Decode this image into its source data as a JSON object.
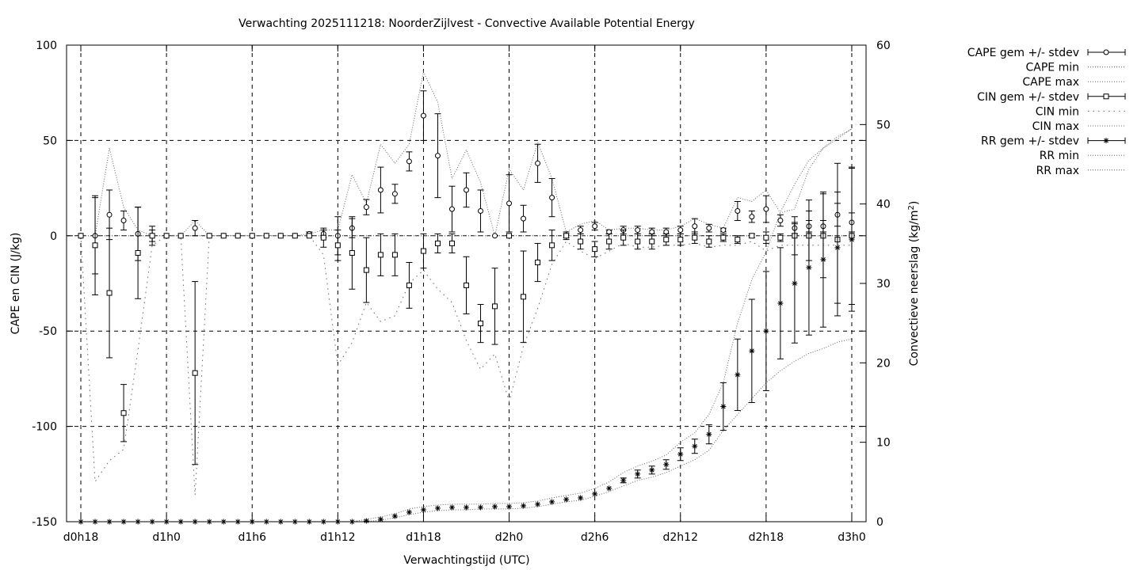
{
  "chart_data": {
    "type": "line",
    "title": "Verwachting 2025111218: NoorderZijlvest - Convective Available Potential Energy",
    "xlabel": "Verwachtingstijd (UTC)",
    "ylabel": "CAPE en CIN (J/kg)",
    "y2label_main": "Convectieve neerslag (kg/m",
    "y2label_sup": "2",
    "y2label_end": ")",
    "xlim": [
      -0.5,
      27.5
    ],
    "ylim": [
      -150,
      100
    ],
    "y2lim": [
      0,
      60
    ],
    "xticks": [
      {
        "x": 0,
        "label": "d0h18"
      },
      {
        "x": 3,
        "label": "d1h0"
      },
      {
        "x": 6,
        "label": "d1h6"
      },
      {
        "x": 9,
        "label": "d1h12"
      },
      {
        "x": 12,
        "label": "d1h18"
      },
      {
        "x": 15,
        "label": "d2h0"
      },
      {
        "x": 18,
        "label": "d2h6"
      },
      {
        "x": 21,
        "label": "d2h12"
      },
      {
        "x": 24,
        "label": "d2h18"
      },
      {
        "x": 27,
        "label": "d3h0"
      }
    ],
    "yticks": [
      -150,
      -100,
      -50,
      0,
      50,
      100
    ],
    "y2ticks": [
      0,
      10,
      20,
      30,
      40,
      50,
      60
    ],
    "grid_dashed_x": [
      0,
      3,
      6,
      9,
      12,
      15,
      18,
      21,
      24,
      27
    ],
    "grid_dashed_y": [
      -100,
      -50,
      0,
      50
    ],
    "legend_position": "outside-right",
    "legend": [
      {
        "label": "CAPE gem +/- stdev",
        "kind": "errorbar",
        "marker": "circle"
      },
      {
        "label": "CAPE min",
        "kind": "line"
      },
      {
        "label": "CAPE max",
        "kind": "line"
      },
      {
        "label": "CIN gem +/- stdev",
        "kind": "errorbar",
        "marker": "square"
      },
      {
        "label": "CIN min",
        "kind": "line-dots"
      },
      {
        "label": "CIN max",
        "kind": "line"
      },
      {
        "label": "RR gem +/- stdev",
        "kind": "errorbar",
        "marker": "star"
      },
      {
        "label": "RR min",
        "kind": "line"
      },
      {
        "label": "RR max",
        "kind": "line"
      }
    ],
    "x": [
      0,
      0.5,
      1,
      1.5,
      2,
      2.5,
      3,
      3.5,
      4,
      4.5,
      5,
      5.5,
      6,
      6.5,
      7,
      7.5,
      8,
      8.5,
      9,
      9.5,
      10,
      10.5,
      11,
      11.5,
      12,
      12.5,
      13,
      13.5,
      14,
      14.5,
      15,
      15.5,
      16,
      16.5,
      17,
      17.5,
      18,
      18.5,
      19,
      19.5,
      20,
      20.5,
      21,
      21.5,
      22,
      22.5,
      23,
      23.5,
      24,
      24.5,
      25,
      25.5,
      26,
      26.5,
      27
    ],
    "series": [
      {
        "name": "CAPE gem +/- stdev",
        "axis": "y1",
        "marker": "circle",
        "values": [
          0,
          0,
          11,
          8,
          1,
          0,
          0,
          0,
          4,
          0,
          0,
          0,
          0,
          0,
          0,
          0,
          1,
          1,
          0,
          4,
          15,
          24,
          22,
          39,
          63,
          42,
          14,
          24,
          13,
          0,
          17,
          9,
          38,
          20,
          0,
          3,
          5,
          2,
          3,
          3,
          2,
          2,
          3,
          5,
          4,
          3,
          13,
          10,
          14,
          8,
          4,
          5,
          5,
          11,
          7
        ],
        "err": [
          0,
          20,
          13,
          5,
          14,
          3,
          0,
          0,
          4,
          0,
          0,
          0,
          0,
          0,
          0,
          0,
          1,
          2,
          10,
          5,
          4,
          12,
          5,
          5,
          13,
          22,
          12,
          9,
          11,
          0,
          15,
          7,
          10,
          10,
          1,
          2,
          2,
          1,
          2,
          2,
          2,
          2,
          2,
          4,
          2,
          1,
          5,
          3,
          7,
          3,
          3,
          3,
          3,
          6,
          5
        ]
      },
      {
        "name": "CIN gem +/- stdev",
        "axis": "y1",
        "marker": "square",
        "values": [
          0,
          -5,
          -30,
          -93,
          -9,
          0,
          0,
          0,
          -72,
          0,
          0,
          0,
          0,
          0,
          0,
          0,
          0,
          -1,
          -5,
          -9,
          -18,
          -10,
          -10,
          -26,
          -8,
          -4,
          -4,
          -26,
          -46,
          -37,
          0,
          -32,
          -14,
          -5,
          0,
          -3,
          -7,
          -3,
          -1,
          -3,
          -3,
          -2,
          -2,
          -1,
          -3,
          -1,
          -2,
          0,
          -1,
          -1,
          0,
          0,
          0,
          -2,
          0
        ],
        "err": [
          0,
          26,
          34,
          15,
          24,
          5,
          0,
          0,
          48,
          0,
          0,
          0,
          0,
          0,
          0,
          0,
          0,
          5,
          8,
          19,
          17,
          11,
          11,
          12,
          9,
          5,
          5,
          15,
          10,
          20,
          0,
          24,
          10,
          8,
          2,
          4,
          4,
          4,
          4,
          4,
          4,
          3,
          3,
          3,
          3,
          2,
          2,
          1,
          3,
          2,
          10,
          13,
          22,
          40,
          36
        ]
      },
      {
        "name": "RR gem +/- stdev",
        "axis": "y2",
        "marker": "star",
        "values": [
          0,
          0,
          0,
          0,
          0,
          0,
          0,
          0,
          0,
          0,
          0,
          0,
          0,
          0,
          0,
          0,
          0,
          0,
          0,
          0,
          0.1,
          0.3,
          0.7,
          1.2,
          1.5,
          1.7,
          1.8,
          1.8,
          1.8,
          1.9,
          1.9,
          2.0,
          2.2,
          2.5,
          2.8,
          3.0,
          3.5,
          4.2,
          5.2,
          6.0,
          6.5,
          7.2,
          8.5,
          9.5,
          11.0,
          14.5,
          18.5,
          21.5,
          24.0,
          27.5,
          30.0,
          32.0,
          33.0,
          34.5,
          35.5
        ],
        "err": [
          0,
          0,
          0,
          0,
          0,
          0,
          0,
          0,
          0,
          0,
          0,
          0,
          0,
          0,
          0,
          0,
          0,
          0,
          0,
          0,
          0,
          0,
          0,
          0,
          0,
          0,
          0,
          0,
          0,
          0,
          0,
          0,
          0,
          0,
          0,
          0,
          0,
          0,
          0.3,
          0.5,
          0.5,
          0.6,
          0.8,
          0.9,
          1.2,
          3,
          4.5,
          6.5,
          7.5,
          7,
          7.5,
          8.5,
          8.5,
          7,
          9
        ]
      }
    ],
    "envelopes": [
      {
        "name": "CAPE min",
        "axis": "y1",
        "values": [
          0,
          0,
          0,
          0,
          0,
          0,
          0,
          0,
          0,
          0,
          0,
          0,
          0,
          0,
          0,
          0,
          0,
          0,
          0,
          0,
          0,
          0,
          0,
          0,
          0,
          0,
          0,
          0,
          0,
          0,
          0,
          0,
          0,
          0,
          0,
          0,
          0,
          0,
          0,
          0,
          0,
          0,
          0,
          0,
          0,
          0,
          0,
          0,
          0,
          0,
          0,
          0,
          0,
          0,
          0
        ]
      },
      {
        "name": "CAPE max",
        "axis": "y1",
        "values": [
          0,
          0,
          46,
          15,
          3,
          0,
          0,
          0,
          8,
          0,
          0,
          0,
          0,
          0,
          0,
          0,
          1,
          3,
          3,
          32,
          17,
          48,
          38,
          48,
          86,
          70,
          30,
          45,
          28,
          0,
          35,
          24,
          49,
          30,
          2,
          6,
          8,
          3,
          4,
          4,
          3,
          3,
          5,
          9,
          6,
          4,
          20,
          18,
          24,
          12,
          14,
          35,
          46,
          52,
          56
        ]
      },
      {
        "name": "CIN min",
        "axis": "y1",
        "values": [
          0,
          -129,
          -118,
          -112,
          -60,
          -5,
          0,
          0,
          -136,
          0,
          0,
          0,
          0,
          0,
          0,
          0,
          0,
          -10,
          -68,
          -56,
          -35,
          -45,
          -42,
          -25,
          -18,
          -28,
          -35,
          -55,
          -70,
          -62,
          -87,
          -58,
          -38,
          -15,
          -3,
          -8,
          -12,
          -8,
          -4,
          -6,
          -6,
          -5,
          -5,
          -4,
          -6,
          -5,
          -5,
          -3,
          -8,
          -5,
          -5,
          -5,
          -5,
          -5,
          -5
        ]
      },
      {
        "name": "CIN max",
        "axis": "y1",
        "values": [
          0,
          0,
          0,
          0,
          0,
          0,
          0,
          0,
          0,
          0,
          0,
          0,
          0,
          0,
          0,
          0,
          0,
          0,
          0,
          0,
          0,
          0,
          0,
          0,
          0,
          0,
          0,
          0,
          0,
          0,
          0,
          0,
          0,
          0,
          0,
          0,
          0,
          0,
          0,
          0,
          0,
          0,
          0,
          0,
          0,
          0,
          0,
          0,
          0,
          0,
          0,
          0,
          0,
          0,
          0
        ]
      },
      {
        "name": "RR min",
        "axis": "y2",
        "values": [
          0,
          0,
          0,
          0,
          0,
          0,
          0,
          0,
          0,
          0,
          0,
          0,
          0,
          0,
          0,
          0,
          0,
          0,
          0,
          0,
          0,
          0.2,
          0.5,
          0.9,
          1.2,
          1.4,
          1.5,
          1.5,
          1.6,
          1.6,
          1.6,
          1.7,
          1.9,
          2.2,
          2.5,
          2.7,
          3.2,
          3.8,
          4.5,
          5.2,
          5.6,
          6.2,
          7.0,
          7.8,
          9.0,
          11.5,
          13.5,
          15.5,
          17.5,
          19.0,
          20.2,
          21.2,
          21.8,
          22.6,
          23.0
        ]
      },
      {
        "name": "RR max",
        "axis": "y2",
        "values": [
          0,
          0,
          0,
          0,
          0,
          0,
          0,
          0,
          0,
          0,
          0,
          0,
          0,
          0,
          0,
          0,
          0,
          0,
          0,
          0,
          0.3,
          0.6,
          1.0,
          1.6,
          1.9,
          2.1,
          2.2,
          2.2,
          2.2,
          2.3,
          2.3,
          2.4,
          2.6,
          3.0,
          3.3,
          3.6,
          4.2,
          5.0,
          6.2,
          7.0,
          7.6,
          8.4,
          10.0,
          11.2,
          13.5,
          17.5,
          25.0,
          30.5,
          34.0,
          39.0,
          42.5,
          45.5,
          47.0,
          48.2,
          49.5
        ]
      }
    ]
  }
}
